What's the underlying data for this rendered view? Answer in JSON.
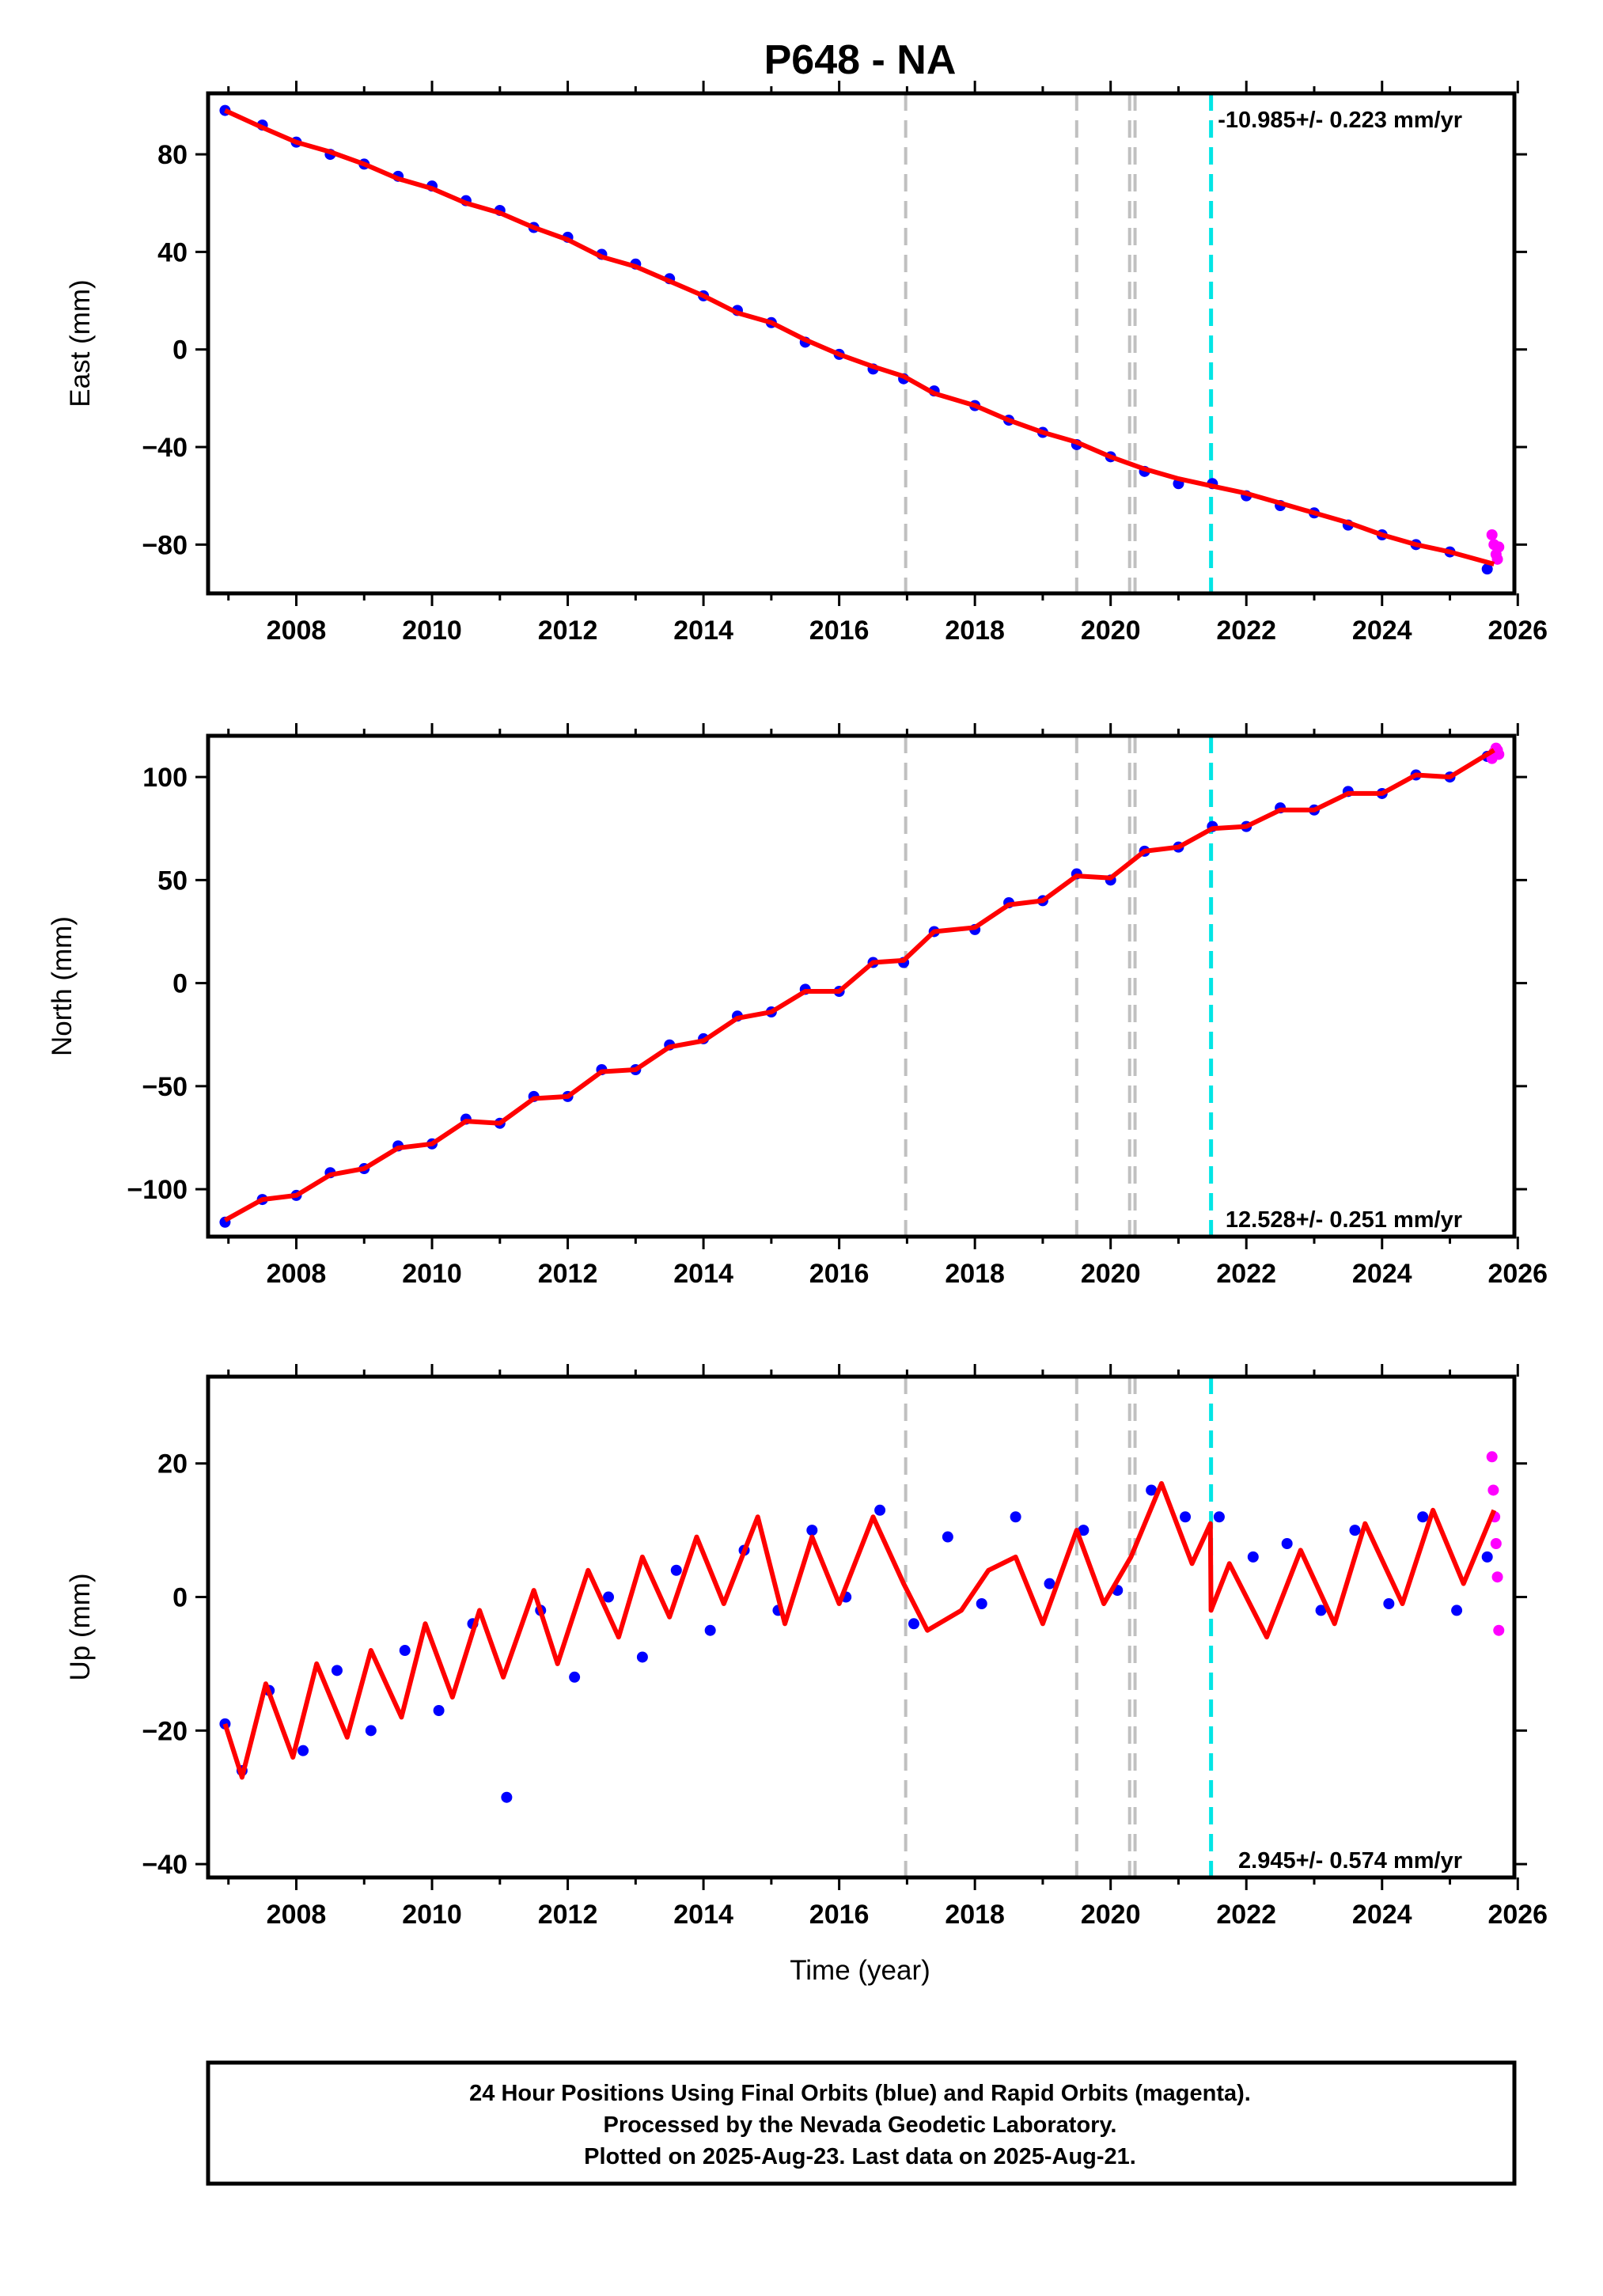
{
  "title": "P648 - NA",
  "xlabel": "Time (year)",
  "footer": [
    "24 Hour Positions Using Final Orbits (blue) and Rapid Orbits (magenta).",
    "Processed by the Nevada Geodetic Laboratory.",
    "Plotted on 2025-Aug-23. Last data on 2025-Aug-21."
  ],
  "colors": {
    "final_orbits": "#0000ff",
    "rapid_orbits": "#ff00ff",
    "model": "#ff0000",
    "equipment_change": "#c0c0c0",
    "earthquake": "#00e5e5"
  },
  "chart_data": [
    {
      "type": "scatter",
      "ylabel": "East (mm)",
      "rate_label": "-10.985+/- 0.223 mm/yr",
      "rate_position": "top-right",
      "xlim": [
        2006.7,
        2025.95
      ],
      "ylim": [
        -100,
        105
      ],
      "xticks": [
        2008,
        2010,
        2012,
        2014,
        2016,
        2018,
        2020,
        2022,
        2024,
        2026
      ],
      "yticks": [
        -80,
        -40,
        0,
        40,
        80
      ],
      "series": [
        {
          "name": "Final Orbits (blue)",
          "kind": "points",
          "x": [
            2006.95,
            2007.5,
            2008,
            2008.5,
            2009,
            2009.5,
            2010,
            2010.5,
            2011,
            2011.5,
            2012,
            2012.5,
            2013,
            2013.5,
            2014,
            2014.5,
            2015,
            2015.5,
            2016,
            2016.5,
            2016.95,
            2017.4,
            2018,
            2018.5,
            2019,
            2019.5,
            2020,
            2020.5,
            2021,
            2021.5,
            2022,
            2022.5,
            2023,
            2023.5,
            2024,
            2024.5,
            2025,
            2025.55
          ],
          "y": [
            98,
            92,
            85,
            80,
            76,
            71,
            67,
            61,
            57,
            50,
            46,
            39,
            35,
            29,
            22,
            16,
            11,
            3,
            -2,
            -8,
            -12,
            -17,
            -23,
            -29,
            -34,
            -39,
            -44,
            -50,
            -55,
            -55,
            -60,
            -64,
            -67,
            -72,
            -76,
            -80,
            -83,
            -90
          ]
        },
        {
          "name": "Rapid Orbits (magenta)",
          "kind": "points",
          "x": [
            2025.62,
            2025.65,
            2025.68,
            2025.7,
            2025.72
          ],
          "y": [
            -76,
            -80,
            -84,
            -86,
            -81
          ]
        },
        {
          "name": "model",
          "kind": "line",
          "x": [
            2006.95,
            2007.5,
            2008,
            2008.5,
            2009,
            2009.5,
            2010,
            2010.5,
            2011,
            2011.5,
            2012,
            2012.5,
            2013,
            2013.5,
            2014,
            2014.5,
            2015,
            2015.5,
            2016,
            2016.5,
            2016.95,
            2017.4,
            2018,
            2018.5,
            2019,
            2019.5,
            2020,
            2020.5,
            2021,
            2021.5,
            2022,
            2022.5,
            2023,
            2023.5,
            2024,
            2024.5,
            2025,
            2025.65
          ],
          "y": [
            98,
            91,
            85,
            81,
            76,
            70,
            66,
            60,
            56,
            50,
            45,
            38,
            34,
            28,
            22,
            15,
            11,
            4,
            -2,
            -7,
            -11,
            -18,
            -23,
            -29,
            -34,
            -38,
            -44,
            -49,
            -53,
            -56,
            -59,
            -63,
            -67,
            -71,
            -76,
            -80,
            -83,
            -88
          ]
        }
      ],
      "vlines_equipment": [
        2016.98,
        2019.5,
        2020.28,
        2020.36
      ],
      "vlines_earthquake": [
        2021.48
      ]
    },
    {
      "type": "scatter",
      "ylabel": "North (mm)",
      "rate_label": "12.528+/- 0.251 mm/yr",
      "rate_position": "bottom-right",
      "xlim": [
        2006.7,
        2025.95
      ],
      "ylim": [
        -123,
        120
      ],
      "xticks": [
        2008,
        2010,
        2012,
        2014,
        2016,
        2018,
        2020,
        2022,
        2024,
        2026
      ],
      "yticks": [
        -100,
        -50,
        0,
        50,
        100
      ],
      "series": [
        {
          "name": "Final Orbits (blue)",
          "kind": "points",
          "x": [
            2006.95,
            2007.5,
            2008,
            2008.5,
            2009,
            2009.5,
            2010,
            2010.5,
            2011,
            2011.5,
            2012,
            2012.5,
            2013,
            2013.5,
            2014,
            2014.5,
            2015,
            2015.5,
            2016,
            2016.5,
            2016.95,
            2017.4,
            2018,
            2018.5,
            2019,
            2019.5,
            2020,
            2020.5,
            2021,
            2021.5,
            2022,
            2022.5,
            2023,
            2023.5,
            2024,
            2024.5,
            2025,
            2025.55
          ],
          "y": [
            -116,
            -105,
            -103,
            -92,
            -90,
            -79,
            -78,
            -66,
            -68,
            -55,
            -55,
            -42,
            -42,
            -30,
            -27,
            -16,
            -14,
            -3,
            -4,
            10,
            10,
            25,
            26,
            39,
            40,
            53,
            50,
            64,
            66,
            76,
            76,
            85,
            84,
            93,
            92,
            101,
            100,
            110
          ]
        },
        {
          "name": "Rapid Orbits (magenta)",
          "kind": "points",
          "x": [
            2025.62,
            2025.65,
            2025.68,
            2025.7,
            2025.72
          ],
          "y": [
            109,
            112,
            114,
            113,
            111
          ]
        },
        {
          "name": "model",
          "kind": "line",
          "x": [
            2006.95,
            2007.5,
            2008,
            2008.5,
            2009,
            2009.5,
            2010,
            2010.5,
            2011,
            2011.5,
            2012,
            2012.5,
            2013,
            2013.5,
            2014,
            2014.5,
            2015,
            2015.5,
            2016,
            2016.5,
            2016.95,
            2017.4,
            2018,
            2018.5,
            2019,
            2019.5,
            2020,
            2020.5,
            2021,
            2021.5,
            2022,
            2022.5,
            2023,
            2023.5,
            2024,
            2024.5,
            2025,
            2025.65
          ],
          "y": [
            -115,
            -105,
            -103,
            -93,
            -90,
            -80,
            -78,
            -67,
            -68,
            -56,
            -55,
            -43,
            -42,
            -31,
            -28,
            -17,
            -14,
            -4,
            -4,
            10,
            11,
            25,
            27,
            38,
            40,
            52,
            51,
            64,
            66,
            75,
            76,
            84,
            84,
            92,
            92,
            101,
            100,
            113
          ]
        }
      ],
      "vlines_equipment": [
        2016.98,
        2019.5,
        2020.28,
        2020.36
      ],
      "vlines_earthquake": [
        2021.48
      ]
    },
    {
      "type": "scatter",
      "ylabel": "Up (mm)",
      "rate_label": "2.945+/- 0.574 mm/yr",
      "rate_position": "bottom-right",
      "xlim": [
        2006.7,
        2025.95
      ],
      "ylim": [
        -42,
        33
      ],
      "xticks": [
        2008,
        2010,
        2012,
        2014,
        2016,
        2018,
        2020,
        2022,
        2024,
        2026
      ],
      "yticks": [
        -40,
        -20,
        0,
        20
      ],
      "series": [
        {
          "name": "Final Orbits (blue)",
          "kind": "points",
          "x": [
            2006.95,
            2007.2,
            2007.6,
            2008.1,
            2008.6,
            2009.1,
            2009.6,
            2010.1,
            2010.6,
            2011.1,
            2011.6,
            2012.1,
            2012.6,
            2013.1,
            2013.6,
            2014.1,
            2014.6,
            2015.1,
            2015.6,
            2016.1,
            2016.6,
            2017.1,
            2017.6,
            2018.1,
            2018.6,
            2019.1,
            2019.6,
            2020.1,
            2020.6,
            2021.1,
            2021.6,
            2022.1,
            2022.6,
            2023.1,
            2023.6,
            2024.1,
            2024.6,
            2025.1,
            2025.55
          ],
          "y": [
            -19,
            -26,
            -14,
            -23,
            -11,
            -20,
            -8,
            -17,
            -4,
            -30,
            -2,
            -12,
            0,
            -9,
            4,
            -5,
            7,
            -2,
            10,
            0,
            13,
            -4,
            9,
            -1,
            12,
            2,
            10,
            1,
            16,
            12,
            12,
            6,
            8,
            -2,
            10,
            -1,
            12,
            -2,
            6
          ]
        },
        {
          "name": "Rapid Orbits (magenta)",
          "kind": "points",
          "x": [
            2025.62,
            2025.64,
            2025.66,
            2025.68,
            2025.7,
            2025.72
          ],
          "y": [
            21,
            16,
            12,
            8,
            3,
            -5
          ]
        },
        {
          "name": "model",
          "kind": "line",
          "x": [
            2006.95,
            2007.2,
            2007.55,
            2007.95,
            2008.3,
            2008.75,
            2009.1,
            2009.55,
            2009.9,
            2010.3,
            2010.7,
            2011.05,
            2011.5,
            2011.85,
            2012.3,
            2012.75,
            2013.1,
            2013.5,
            2013.9,
            2014.3,
            2014.8,
            2015.2,
            2015.6,
            2016,
            2016.5,
            2016.95,
            2017.3,
            2017.8,
            2018.2,
            2018.6,
            2019,
            2019.5,
            2019.9,
            2020.3,
            2020.75,
            2021.2,
            2021.47,
            2021.48,
            2021.75,
            2022.3,
            2022.8,
            2023.3,
            2023.75,
            2024.3,
            2024.75,
            2025.2,
            2025.65
          ],
          "y": [
            -19,
            -27,
            -13,
            -24,
            -10,
            -21,
            -8,
            -18,
            -4,
            -15,
            -2,
            -12,
            1,
            -10,
            4,
            -6,
            6,
            -3,
            9,
            -1,
            12,
            -4,
            9,
            -1,
            12,
            2,
            -5,
            -2,
            4,
            6,
            -4,
            10,
            -1,
            6,
            17,
            5,
            11,
            -2,
            5,
            -6,
            7,
            -4,
            11,
            -1,
            13,
            2,
            13
          ]
        }
      ],
      "vlines_equipment": [
        2016.98,
        2019.5,
        2020.28,
        2020.36
      ],
      "vlines_earthquake": [
        2021.48
      ]
    }
  ]
}
